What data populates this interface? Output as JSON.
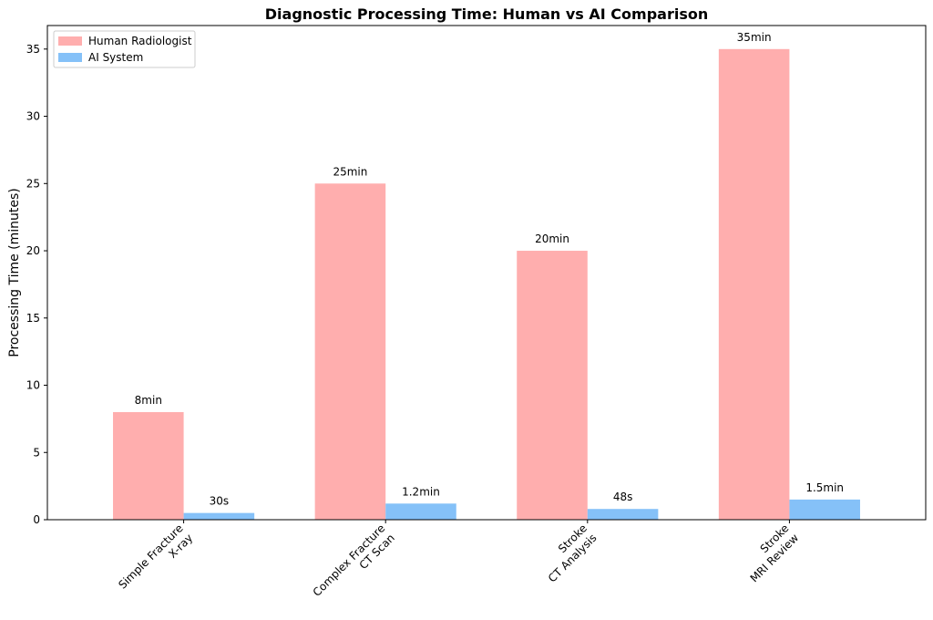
{
  "chart_data": {
    "type": "bar",
    "title": "Diagnostic Processing Time: Human vs AI Comparison",
    "xlabel": "",
    "ylabel": "Processing Time (minutes)",
    "ylim": [
      0,
      36.75
    ],
    "yticks": [
      0,
      5,
      10,
      15,
      20,
      25,
      30,
      35
    ],
    "grid": false,
    "legend_position": "top-left",
    "categories": [
      [
        "Simple Fracture",
        "X-ray"
      ],
      [
        "Complex Fracture",
        "CT Scan"
      ],
      [
        "Stroke",
        "CT Analysis"
      ],
      [
        "Stroke",
        "MRI Review"
      ]
    ],
    "series": [
      {
        "name": "Human Radiologist",
        "color": "#ffaeae",
        "values": [
          8,
          25,
          20,
          35
        ],
        "labels": [
          "8min",
          "25min",
          "20min",
          "35min"
        ]
      },
      {
        "name": "AI System",
        "color": "#85c1f8",
        "values": [
          0.5,
          1.2,
          0.8,
          1.5
        ],
        "labels": [
          "30s",
          "1.2min",
          "48s",
          "1.5min"
        ]
      }
    ]
  }
}
